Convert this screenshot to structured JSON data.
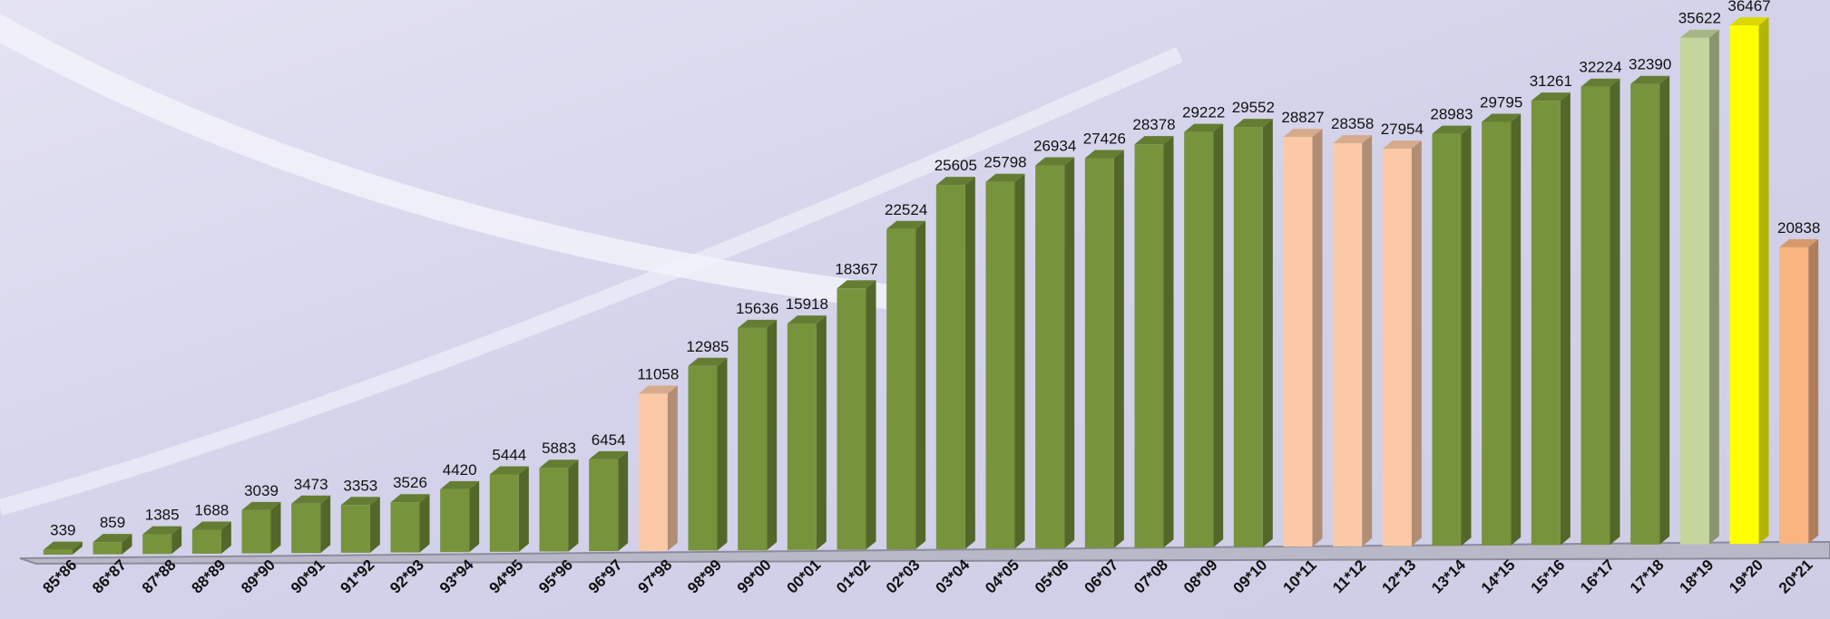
{
  "chart_data": {
    "type": "bar3d",
    "categories": [
      "85*86",
      "86*87",
      "87*88",
      "88*89",
      "89*90",
      "90*91",
      "91*92",
      "92*93",
      "93*94",
      "94*95",
      "95*96",
      "96*97",
      "97*98",
      "98*99",
      "99*00",
      "00*01",
      "01*02",
      "02*03",
      "03*04",
      "04*05",
      "05*06",
      "06*07",
      "07*08",
      "08*09",
      "09*10",
      "10*11",
      "11*12",
      "12*13",
      "13*14",
      "14*15",
      "15*16",
      "16*17",
      "17*18",
      "18*19",
      "19*20",
      "20*21"
    ],
    "values": [
      339,
      859,
      1385,
      1688,
      3039,
      3473,
      3353,
      3526,
      4420,
      5444,
      5883,
      6454,
      11058,
      12985,
      15636,
      15918,
      18367,
      22524,
      25605,
      25798,
      26934,
      27426,
      28378,
      29222,
      29552,
      28827,
      28358,
      27954,
      28983,
      29795,
      31261,
      32224,
      32390,
      35622,
      36467,
      20838
    ],
    "colors": [
      "#77933c",
      "#77933c",
      "#77933c",
      "#77933c",
      "#77933c",
      "#77933c",
      "#77933c",
      "#77933c",
      "#77933c",
      "#77933c",
      "#77933c",
      "#77933c",
      "#fcc9a6",
      "#77933c",
      "#77933c",
      "#77933c",
      "#77933c",
      "#77933c",
      "#77933c",
      "#77933c",
      "#77933c",
      "#77933c",
      "#77933c",
      "#77933c",
      "#77933c",
      "#fcc9a6",
      "#fcc9a6",
      "#fcc9a6",
      "#77933c",
      "#77933c",
      "#77933c",
      "#77933c",
      "#77933c",
      "#c3d69b",
      "#ffff00",
      "#fab47f"
    ]
  }
}
